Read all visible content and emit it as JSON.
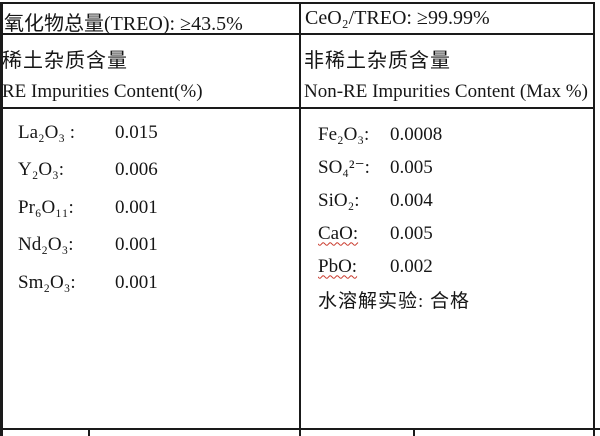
{
  "table": {
    "row1": {
      "treo_total": "氧化物总量(TREO): ≥43.5%",
      "ceo2_ratio": "CeO₂/TREO: ≥99.99%"
    },
    "row2": {
      "re_title_cn": "稀土杂质含量",
      "re_title_en": "RE Impurities Content(%)",
      "non_re_title_cn": "非稀土杂质含量",
      "non_re_title_en": "Non-RE Impurities Content (Max %)"
    },
    "re_impurities": [
      {
        "label": "La₂O₃ :",
        "value": "0.015"
      },
      {
        "label": "Y₂O₃:",
        "value": "0.006"
      },
      {
        "label": "Pr₆O₁₁:",
        "value": "0.001"
      },
      {
        "label": "Nd₂O₃:",
        "value": "0.001"
      },
      {
        "label": "Sm₂O₃:",
        "value": "0.001"
      }
    ],
    "non_re_impurities": [
      {
        "label": "Fe₂O₃:",
        "value": "0.0008"
      },
      {
        "label": "SO₄²⁻:",
        "value": "0.005"
      },
      {
        "label": "SiO₂:",
        "value": "0.004"
      },
      {
        "label": "CaO:",
        "value": "0.005"
      },
      {
        "label": "PbO:",
        "value": "0.002"
      }
    ],
    "water_test": "水溶解实验: 合格"
  },
  "colors": {
    "border": "#1a1a1a",
    "text": "#161616",
    "spellcheck_underline": "#c9392b",
    "background": "#ffffff"
  }
}
